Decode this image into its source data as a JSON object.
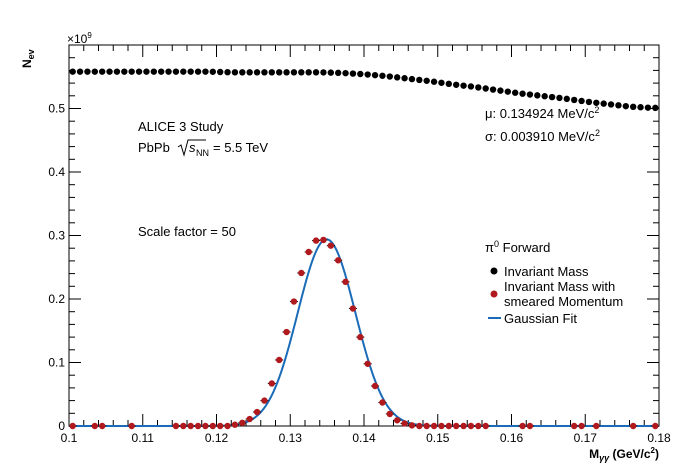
{
  "chart_data": {
    "type": "scatter",
    "title": "",
    "xlabel_main": "M",
    "xlabel_sub": "γγ",
    "xlabel_unit": "(GeV/c",
    "xlabel_unit_sup": "2",
    "xlabel_unit_end": ")",
    "ylabel_main": "N",
    "ylabel_sub": "ev",
    "y_multiplier": "×10",
    "y_multiplier_exp": "9",
    "xlim": [
      0.1,
      0.18
    ],
    "ylim": [
      0,
      0.6
    ],
    "x_ticks": [
      "0.1",
      "0.11",
      "0.12",
      "0.13",
      "0.14",
      "0.15",
      "0.16",
      "0.17",
      "0.18"
    ],
    "y_ticks": [
      "0",
      "0.1",
      "0.2",
      "0.3",
      "0.4",
      "0.5"
    ],
    "annotations": {
      "study": "ALICE 3 Study",
      "system_prefix": "PbPb",
      "sqrt_s": "s",
      "sqrt_sub": "NN",
      "energy": "= 5.5 TeV",
      "scale": "Scale factor = 50",
      "mu": "μ: 0.134924 MeV/c",
      "mu_sup": "2",
      "sigma": "σ: 0.003910 MeV/c",
      "sigma_sup": "2"
    },
    "legend": {
      "header": "Forward",
      "header_particle": "π",
      "header_sup": "0",
      "entries": [
        "Invariant Mass",
        "Invariant Mass with",
        "smeared Momentum",
        "Gaussian Fit"
      ]
    },
    "colors": {
      "invariant_mass": "#000000",
      "smeared": "#b0191d",
      "fit": "#1a6bb8"
    },
    "invariant_mass_points": {
      "x": [
        0.101,
        0.104,
        0.107,
        0.11,
        0.113,
        0.116,
        0.119,
        0.122,
        0.125,
        0.128,
        0.131,
        0.134,
        0.137,
        0.14,
        0.143,
        0.146,
        0.149,
        0.152,
        0.155,
        0.158,
        0.161,
        0.164,
        0.167,
        0.17,
        0.173,
        0.176,
        0.179
      ],
      "y": [
        0.558,
        0.558,
        0.558,
        0.558,
        0.558,
        0.558,
        0.558,
        0.557,
        0.557,
        0.557,
        0.557,
        0.557,
        0.556,
        0.554,
        0.551,
        0.547,
        0.543,
        0.538,
        0.534,
        0.529,
        0.524,
        0.52,
        0.516,
        0.511,
        0.507,
        0.503,
        0.501
      ]
    },
    "smeared_points": {
      "x": [
        0.1005,
        0.1035,
        0.1045,
        0.1085,
        0.1145,
        0.1155,
        0.1165,
        0.1175,
        0.1185,
        0.1195,
        0.1205,
        0.1215,
        0.1225,
        0.1235,
        0.1245,
        0.1255,
        0.1265,
        0.1275,
        0.1285,
        0.1295,
        0.1305,
        0.1315,
        0.1325,
        0.1335,
        0.1345,
        0.1355,
        0.1365,
        0.1375,
        0.1385,
        0.1395,
        0.1405,
        0.1415,
        0.1425,
        0.1435,
        0.1445,
        0.1455,
        0.1465,
        0.1475,
        0.1485,
        0.1495,
        0.1505,
        0.1515,
        0.1525,
        0.1535,
        0.1545,
        0.1555,
        0.1565,
        0.1615,
        0.1625,
        0.1685,
        0.1695,
        0.1715,
        0.1765,
        0.1795
      ],
      "y": [
        0.0,
        0.0,
        0.0,
        0.0,
        0.0,
        0.0,
        0.0,
        0.0,
        0.0,
        0.0,
        0.0,
        0.0,
        0.002,
        0.005,
        0.011,
        0.022,
        0.04,
        0.067,
        0.104,
        0.148,
        0.196,
        0.241,
        0.274,
        0.292,
        0.293,
        0.284,
        0.261,
        0.227,
        0.185,
        0.14,
        0.098,
        0.063,
        0.037,
        0.019,
        0.009,
        0.004,
        0.001,
        0.0,
        0.0,
        0.0,
        0.0,
        0.0,
        0.0,
        0.0,
        0.0,
        0.0,
        0.0,
        0.0,
        0.0,
        0.0,
        0.0,
        0.0,
        0.0,
        0.0
      ]
    },
    "gaussian_fit": {
      "mean": 0.134924,
      "sigma": 0.00391,
      "amplitude": 0.294
    }
  }
}
